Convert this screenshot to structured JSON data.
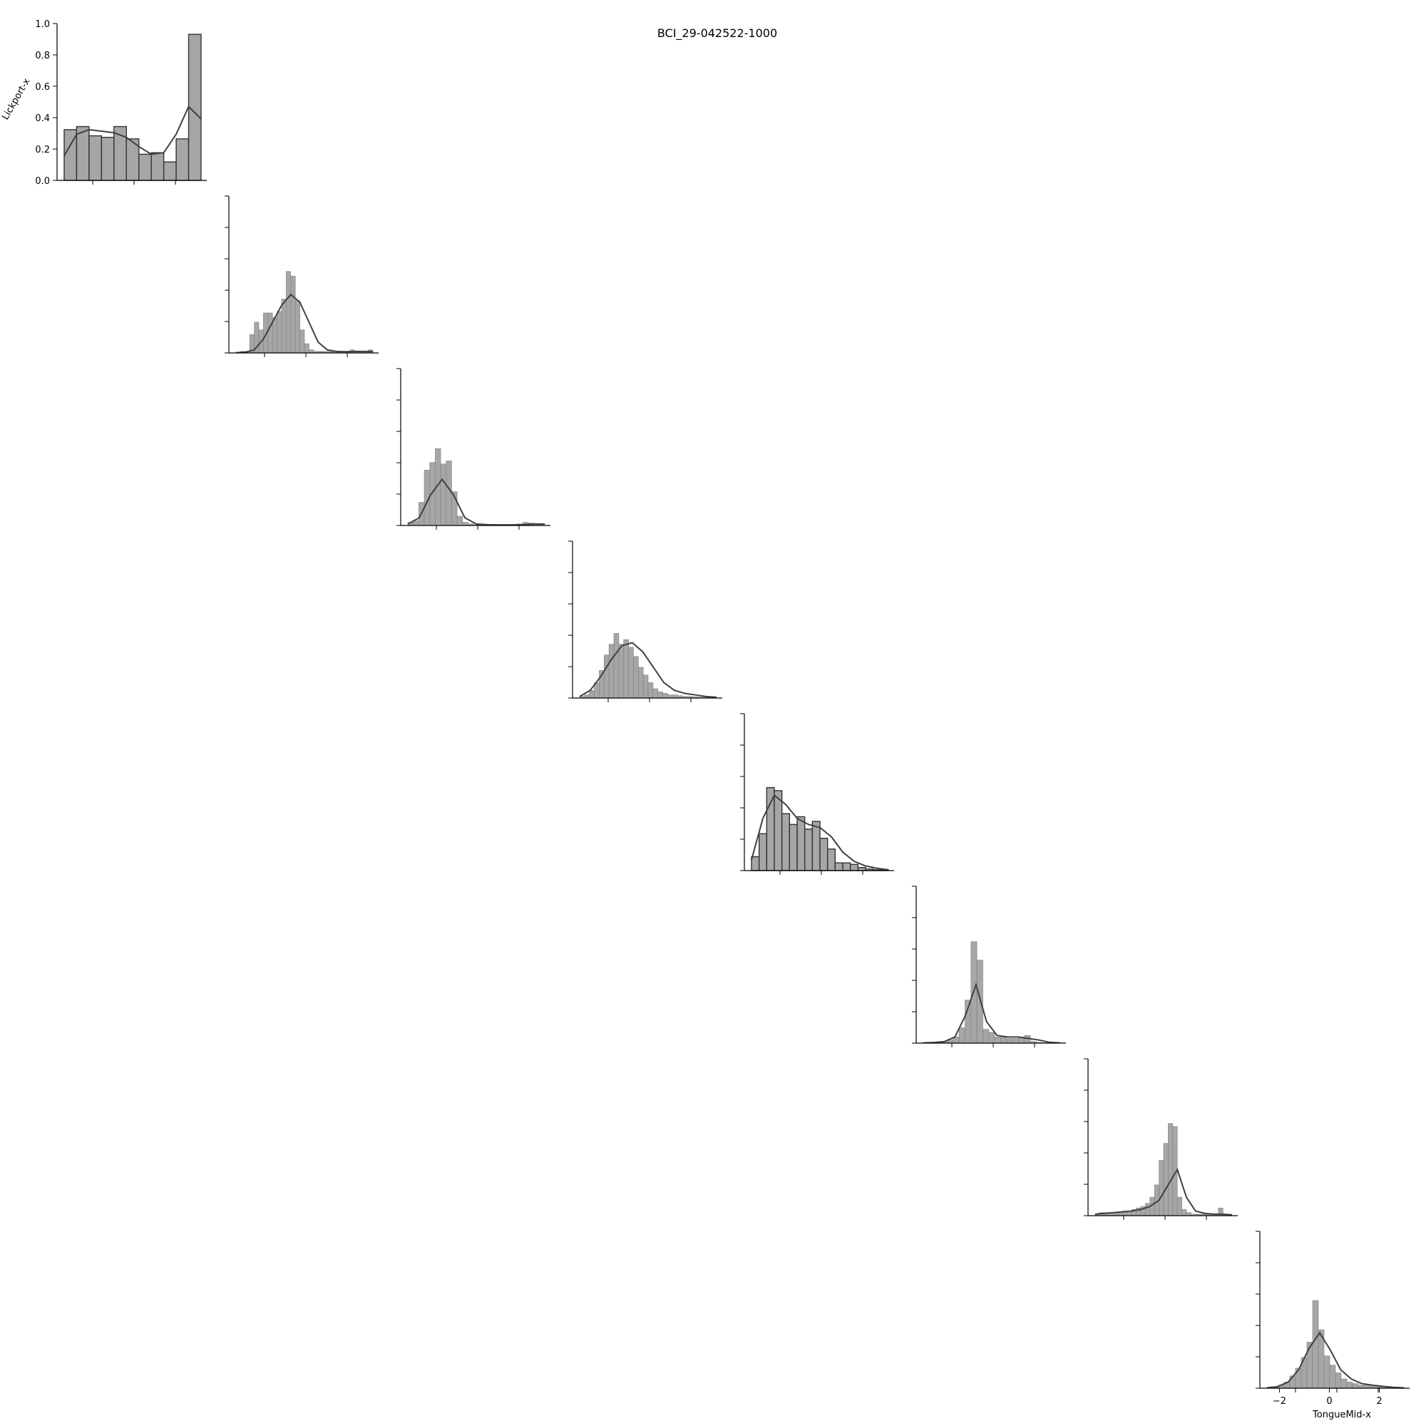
{
  "figure": {
    "title": "BCI_29-042522-1000"
  },
  "chart_data": [
    {
      "type": "bar",
      "panel": 1,
      "ylabel": "Lickport-x",
      "ylim": [
        0,
        1.0
      ],
      "yticks": [
        "0.0",
        "0.2",
        "0.4",
        "0.6",
        "0.8",
        "1.0"
      ],
      "bin_edges": [
        0,
        1,
        2,
        3,
        4,
        5,
        6,
        7,
        8,
        9,
        10,
        11
      ],
      "values": [
        0.33,
        0.35,
        0.29,
        0.28,
        0.35,
        0.27,
        0.17,
        0.18,
        0.12,
        0.27,
        0.95
      ],
      "kde_y": [
        0.16,
        0.3,
        0.33,
        0.32,
        0.31,
        0.28,
        0.22,
        0.17,
        0.18,
        0.3,
        0.48,
        0.4
      ]
    },
    {
      "type": "bar",
      "panel": 2,
      "values": [
        0.005,
        0.01,
        0.01,
        0.12,
        0.2,
        0.15,
        0.26,
        0.26,
        0.23,
        0.27,
        0.35,
        0.53,
        0.5,
        0.34,
        0.15,
        0.06,
        0.02,
        0.01,
        0.01,
        0.01,
        0.01,
        0.01,
        0.01,
        0.01,
        0.01,
        0.02,
        0.01,
        0.01,
        0.005,
        0.02
      ],
      "kde_y": [
        0.002,
        0.005,
        0.02,
        0.09,
        0.2,
        0.31,
        0.38,
        0.33,
        0.2,
        0.07,
        0.02,
        0.01,
        0.008,
        0.01,
        0.01,
        0.01
      ]
    },
    {
      "type": "bar",
      "panel": 3,
      "values": [
        0.02,
        0.03,
        0.15,
        0.36,
        0.41,
        0.5,
        0.4,
        0.42,
        0.22,
        0.06,
        0.02,
        0.01,
        0.005,
        0.005,
        0.005,
        0.005,
        0.005,
        0.005,
        0.005,
        0.005,
        0.01,
        0.02,
        0.015,
        0.01,
        0.01
      ],
      "kde_y": [
        0.01,
        0.05,
        0.2,
        0.3,
        0.2,
        0.05,
        0.01,
        0.005,
        0.004,
        0.004,
        0.005,
        0.01,
        0.01
      ]
    },
    {
      "type": "bar",
      "panel": 4,
      "values": [
        0.01,
        0.02,
        0.05,
        0.1,
        0.18,
        0.28,
        0.35,
        0.42,
        0.35,
        0.38,
        0.33,
        0.27,
        0.2,
        0.15,
        0.1,
        0.06,
        0.04,
        0.03,
        0.02,
        0.02,
        0.015,
        0.01,
        0.01,
        0.008,
        0.006,
        0.005,
        0.004,
        0.003
      ],
      "kde_y": [
        0.01,
        0.05,
        0.14,
        0.25,
        0.34,
        0.36,
        0.3,
        0.2,
        0.1,
        0.05,
        0.03,
        0.02,
        0.01,
        0.005
      ]
    },
    {
      "type": "bar",
      "panel": 5,
      "values": [
        0.09,
        0.24,
        0.54,
        0.52,
        0.37,
        0.3,
        0.35,
        0.27,
        0.32,
        0.21,
        0.14,
        0.05,
        0.05,
        0.04,
        0.02,
        0.01,
        0.005,
        0.003
      ],
      "kde_y": [
        0.07,
        0.34,
        0.49,
        0.43,
        0.34,
        0.3,
        0.28,
        0.22,
        0.12,
        0.06,
        0.03,
        0.015,
        0.005
      ]
    },
    {
      "type": "bar",
      "panel": 6,
      "values": [
        0.003,
        0.003,
        0.005,
        0.008,
        0.02,
        0.04,
        0.1,
        0.28,
        0.66,
        0.54,
        0.09,
        0.07,
        0.04,
        0.04,
        0.03,
        0.03,
        0.04,
        0.05,
        0.01,
        0.005,
        0.003,
        0.003,
        0.002
      ],
      "kde_y": [
        0.002,
        0.004,
        0.01,
        0.04,
        0.18,
        0.38,
        0.14,
        0.05,
        0.04,
        0.04,
        0.03,
        0.02,
        0.005,
        0.002
      ]
    },
    {
      "type": "bar",
      "panel": 7,
      "values": [
        0.01,
        0.02,
        0.02,
        0.02,
        0.02,
        0.02,
        0.03,
        0.03,
        0.04,
        0.05,
        0.06,
        0.08,
        0.12,
        0.2,
        0.36,
        0.47,
        0.6,
        0.58,
        0.12,
        0.04,
        0.02,
        0.01,
        0.01,
        0.01,
        0.01,
        0.01,
        0.01,
        0.05,
        0.01,
        0.005
      ],
      "kde_y": [
        0.01,
        0.015,
        0.02,
        0.025,
        0.03,
        0.04,
        0.06,
        0.1,
        0.2,
        0.3,
        0.12,
        0.03,
        0.015,
        0.01,
        0.01,
        0.005
      ]
    },
    {
      "type": "bar",
      "panel": 8,
      "xlabel": "TongueMid-x",
      "xticks": [
        "−2",
        "0",
        "2"
      ],
      "xlim": [
        -2.5,
        3.1
      ],
      "values": [
        0.005,
        0.01,
        0.02,
        0.04,
        0.08,
        0.13,
        0.2,
        0.3,
        0.57,
        0.38,
        0.21,
        0.15,
        0.1,
        0.06,
        0.04,
        0.03,
        0.02,
        0.02,
        0.015,
        0.01,
        0.01,
        0.008,
        0.005,
        0.003
      ],
      "kde_y": [
        0.003,
        0.01,
        0.04,
        0.12,
        0.26,
        0.36,
        0.25,
        0.12,
        0.06,
        0.03,
        0.02,
        0.012,
        0.006,
        0.003
      ]
    }
  ]
}
